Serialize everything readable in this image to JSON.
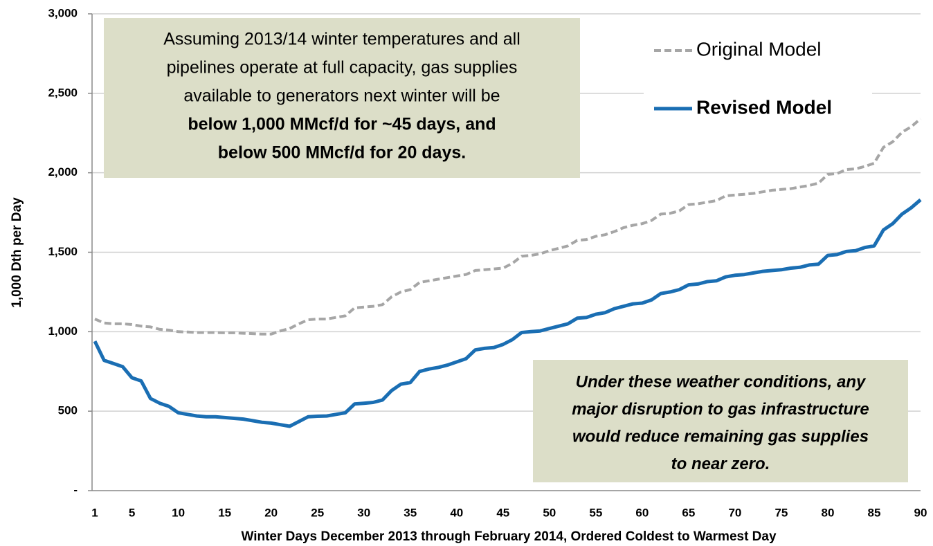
{
  "chart_data": {
    "type": "line",
    "x_label": "Winter Days December 2013 through February 2014, Ordered Coldest to Warmest Day",
    "y_label": "1,000 Dth per Day",
    "x": [
      1,
      2,
      3,
      4,
      5,
      6,
      7,
      8,
      9,
      10,
      11,
      12,
      13,
      14,
      15,
      16,
      17,
      18,
      19,
      20,
      21,
      22,
      23,
      24,
      25,
      26,
      27,
      28,
      29,
      30,
      31,
      32,
      33,
      34,
      35,
      36,
      37,
      38,
      39,
      40,
      41,
      42,
      43,
      44,
      45,
      46,
      47,
      48,
      49,
      50,
      51,
      52,
      53,
      54,
      55,
      56,
      57,
      58,
      59,
      60,
      61,
      62,
      63,
      64,
      65,
      66,
      67,
      68,
      69,
      70,
      71,
      72,
      73,
      74,
      75,
      76,
      77,
      78,
      79,
      80,
      81,
      82,
      83,
      84,
      85,
      86,
      87,
      88,
      89,
      90
    ],
    "series": [
      {
        "name": "Original Model",
        "color": "#a6a6a6",
        "dashed": true,
        "values": [
          1080,
          1055,
          1050,
          1050,
          1045,
          1035,
          1030,
          1015,
          1010,
          1000,
          998,
          995,
          995,
          995,
          993,
          993,
          990,
          988,
          985,
          985,
          1005,
          1020,
          1050,
          1075,
          1080,
          1080,
          1090,
          1100,
          1150,
          1155,
          1160,
          1170,
          1220,
          1250,
          1265,
          1310,
          1320,
          1330,
          1340,
          1350,
          1360,
          1385,
          1390,
          1395,
          1400,
          1430,
          1475,
          1480,
          1490,
          1510,
          1525,
          1540,
          1575,
          1580,
          1600,
          1610,
          1630,
          1655,
          1670,
          1680,
          1700,
          1740,
          1745,
          1760,
          1800,
          1805,
          1815,
          1825,
          1855,
          1860,
          1865,
          1870,
          1880,
          1890,
          1895,
          1900,
          1910,
          1920,
          1935,
          1990,
          1995,
          2020,
          2025,
          2040,
          2060,
          2160,
          2195,
          2255,
          2290,
          2340
        ]
      },
      {
        "name": "Revised Model",
        "color": "#1a6eb3",
        "dashed": false,
        "values": [
          940,
          820,
          800,
          780,
          710,
          690,
          580,
          550,
          530,
          490,
          480,
          470,
          465,
          465,
          460,
          455,
          450,
          440,
          430,
          425,
          415,
          405,
          435,
          465,
          468,
          470,
          480,
          490,
          545,
          550,
          555,
          570,
          630,
          670,
          680,
          750,
          765,
          775,
          790,
          810,
          830,
          885,
          895,
          900,
          920,
          950,
          995,
          1000,
          1005,
          1020,
          1035,
          1050,
          1085,
          1090,
          1110,
          1120,
          1145,
          1160,
          1175,
          1180,
          1200,
          1240,
          1250,
          1265,
          1295,
          1300,
          1315,
          1320,
          1345,
          1355,
          1360,
          1370,
          1380,
          1385,
          1390,
          1400,
          1405,
          1420,
          1425,
          1480,
          1485,
          1505,
          1510,
          1530,
          1540,
          1640,
          1680,
          1740,
          1780,
          1830
        ]
      }
    ],
    "xlim": [
      1,
      90
    ],
    "xticks": [
      1,
      5,
      10,
      15,
      20,
      25,
      30,
      35,
      40,
      45,
      50,
      55,
      60,
      65,
      70,
      75,
      80,
      85,
      90
    ],
    "ylim": [
      0,
      3000
    ],
    "yticks": [
      {
        "value": 0,
        "label": "-"
      },
      500,
      {
        "value": 1000,
        "label": "1,000"
      },
      {
        "value": 1500,
        "label": "1,500"
      },
      {
        "value": 2000,
        "label": "2,000"
      },
      {
        "value": 2500,
        "label": "2,500"
      },
      {
        "value": 3000,
        "label": "3,000"
      }
    ],
    "grid": true,
    "legend": "upper right",
    "annotations": [
      {
        "lines": [
          {
            "text": "Assuming 2013/14 winter temperatures and all",
            "bold": false
          },
          {
            "text": "pipelines operate at full capacity, gas supplies",
            "bold": false
          },
          {
            "text": "available to generators next winter will be",
            "bold": false
          },
          {
            "text": "below 1,000 MMcf/d for ~45 days, and",
            "bold": true
          },
          {
            "text": "below 500 MMcf/d for 20 days.",
            "bold": true
          }
        ]
      },
      {
        "lines": [
          {
            "text": "Under these weather conditions, any",
            "bold": true
          },
          {
            "text": "major disruption to gas infrastructure",
            "bold": true
          },
          {
            "text": "would reduce remaining gas supplies",
            "bold": true
          },
          {
            "text": "to near zero.",
            "bold": true
          }
        ]
      }
    ]
  }
}
